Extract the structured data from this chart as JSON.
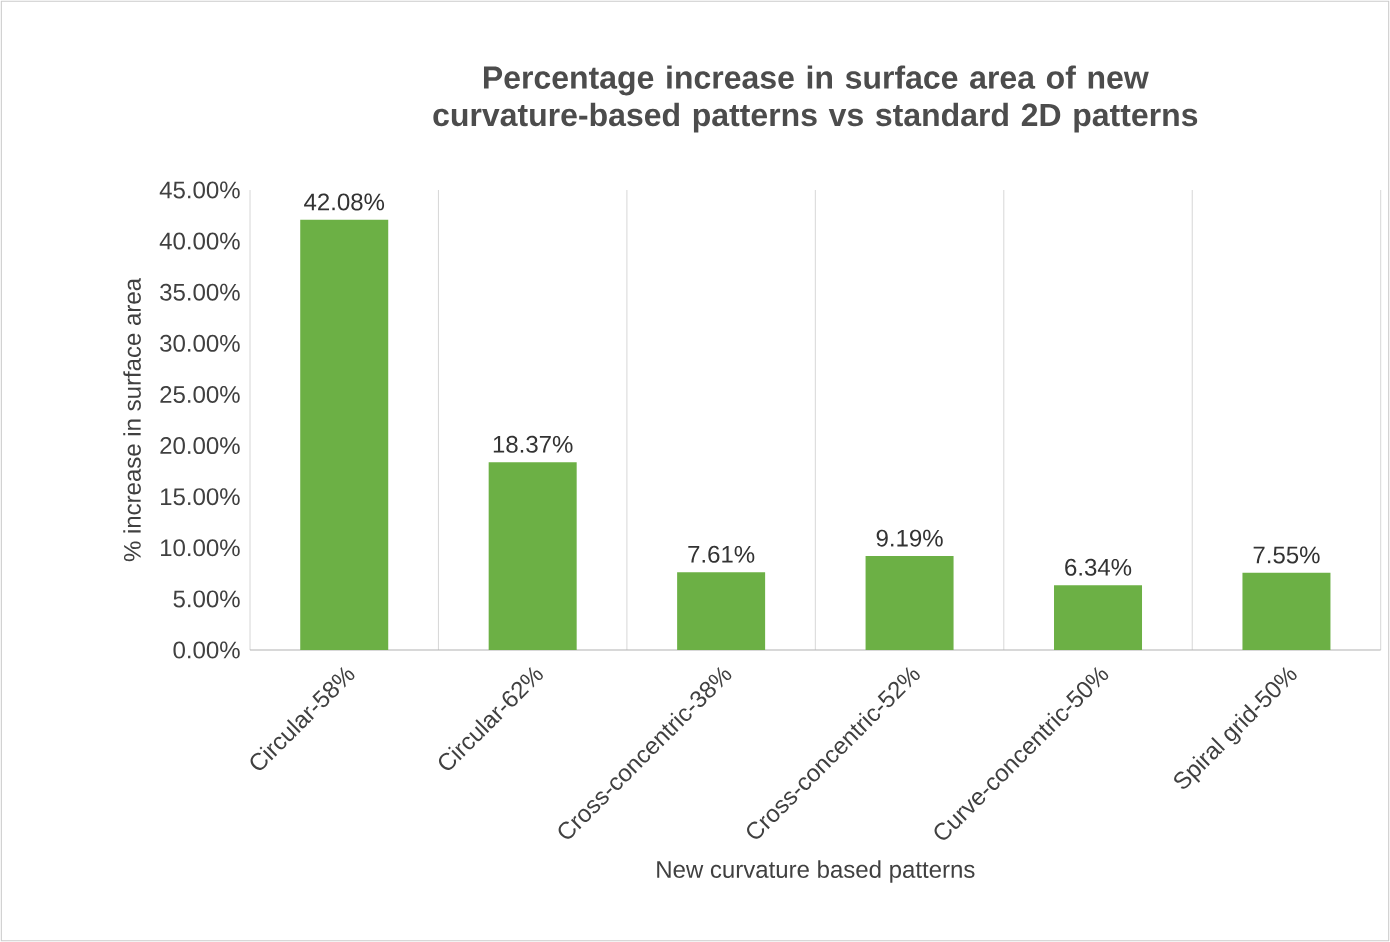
{
  "chart_data": {
    "type": "bar",
    "title": "Percentage increase in surface area of new curvature-based patterns vs standard 2D patterns",
    "xlabel": "New curvature based patterns",
    "ylabel": "% increase in surface area",
    "categories": [
      "Circular-58%",
      "Circular-62%",
      "Cross-concentric-38%",
      "Cross-concentric-52%",
      "Curve-concentric-50%",
      "Spiral grid-50%"
    ],
    "values": [
      42.08,
      18.37,
      7.61,
      9.19,
      6.34,
      7.55
    ],
    "value_labels": [
      "42.08%",
      "18.37%",
      "7.61%",
      "9.19%",
      "6.34%",
      "7.55%"
    ],
    "color": "#6cb045",
    "ylim": [
      0,
      45
    ],
    "yticks": [
      {
        "value": 0,
        "label": "0.00%"
      },
      {
        "value": 5,
        "label": "5.00%"
      },
      {
        "value": 10,
        "label": "10.00%"
      },
      {
        "value": 15,
        "label": "15.00%"
      },
      {
        "value": 20,
        "label": "20.00%"
      },
      {
        "value": 25,
        "label": "25.00%"
      },
      {
        "value": 30,
        "label": "30.00%"
      },
      {
        "value": 35,
        "label": "35.00%"
      },
      {
        "value": 40,
        "label": "40.00%"
      },
      {
        "value": 45,
        "label": "45.00%"
      }
    ],
    "grid": "x"
  }
}
